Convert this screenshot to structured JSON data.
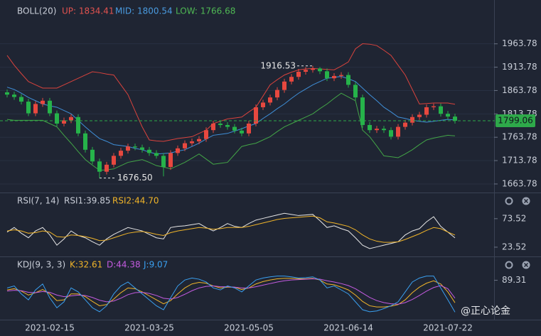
{
  "chart_data": [
    {
      "type": "candlestick",
      "header": [
        {
          "text": "BOLL(20)",
          "color": "#c9ced8"
        },
        {
          "text": "UP: 1834.41",
          "color": "#e0524f"
        },
        {
          "text": "MID: 1800.54",
          "color": "#4a9be0"
        },
        {
          "text": "LOW: 1766.68",
          "color": "#4fb854"
        }
      ],
      "categories": [
        null,
        null,
        null,
        null,
        null,
        null,
        "2021-02-15",
        null,
        null,
        null,
        null,
        null,
        null,
        null,
        null,
        null,
        null,
        null,
        null,
        null,
        "2021-03-25",
        null,
        null,
        null,
        null,
        null,
        null,
        null,
        null,
        null,
        null,
        null,
        null,
        null,
        "2021-05-05",
        null,
        null,
        null,
        null,
        null,
        null,
        null,
        null,
        null,
        null,
        null,
        null,
        null,
        "2021-06-14",
        null,
        null,
        null,
        null,
        null,
        null,
        null,
        null,
        null,
        null,
        null,
        null,
        null,
        "2021-07-22",
        null
      ],
      "candles": {
        "open": [
          1860,
          1855,
          1850,
          1840,
          1815,
          1835,
          1842,
          1815,
          1793,
          1800,
          1807,
          1772,
          1737,
          1712,
          1690,
          1705,
          1724,
          1735,
          1744,
          1742,
          1737,
          1730,
          1724,
          1700,
          1730,
          1740,
          1751,
          1755,
          1760,
          1779,
          1793,
          1790,
          1786,
          1778,
          1772,
          1793,
          1828,
          1838,
          1849,
          1865,
          1883,
          1893,
          1904,
          1908,
          1911,
          1905,
          1890,
          1895,
          1897,
          1876,
          1849,
          1790,
          1779,
          1782,
          1779,
          1765,
          1786,
          1795,
          1807,
          1812,
          1828,
          1830,
          1814,
          1808
        ],
        "high": [
          1866,
          1861,
          1856,
          1846,
          1841,
          1848,
          1848,
          1821,
          1806,
          1813,
          1813,
          1778,
          1743,
          1718,
          1711,
          1730,
          1741,
          1750,
          1750,
          1748,
          1743,
          1736,
          1730,
          1736,
          1746,
          1757,
          1761,
          1766,
          1785,
          1799,
          1799,
          1796,
          1792,
          1784,
          1799,
          1834,
          1844,
          1855,
          1871,
          1889,
          1899,
          1910,
          1914,
          1916.53,
          1914,
          1911,
          1901,
          1903,
          1903,
          1882,
          1855,
          1796,
          1788,
          1788,
          1785,
          1792,
          1801,
          1813,
          1818,
          1834,
          1836,
          1836,
          1820,
          1814
        ],
        "low": [
          1849,
          1844,
          1834,
          1809,
          1809,
          1829,
          1809,
          1787,
          1787,
          1794,
          1766,
          1731,
          1706,
          1676.5,
          1684,
          1699,
          1718,
          1729,
          1736,
          1731,
          1724,
          1718,
          1680,
          1694,
          1724,
          1734,
          1745,
          1749,
          1754,
          1773,
          1784,
          1780,
          1772,
          1766,
          1766,
          1787,
          1822,
          1832,
          1843,
          1859,
          1877,
          1887,
          1898,
          1902,
          1899,
          1884,
          1884,
          1889,
          1870,
          1843,
          1784,
          1773,
          1773,
          1773,
          1759,
          1759,
          1780,
          1789,
          1801,
          1806,
          1822,
          1808,
          1802,
          1793
        ],
        "close": [
          1855,
          1850,
          1840,
          1815,
          1835,
          1842,
          1815,
          1793,
          1800,
          1807,
          1772,
          1737,
          1712,
          1690,
          1705,
          1724,
          1735,
          1744,
          1742,
          1737,
          1730,
          1724,
          1700,
          1730,
          1740,
          1751,
          1755,
          1760,
          1779,
          1793,
          1790,
          1786,
          1778,
          1772,
          1793,
          1828,
          1838,
          1849,
          1865,
          1883,
          1893,
          1904,
          1908,
          1911,
          1905,
          1890,
          1895,
          1897,
          1876,
          1849,
          1790,
          1779,
          1782,
          1779,
          1765,
          1786,
          1795,
          1807,
          1812,
          1828,
          1830,
          1814,
          1808,
          1799.06
        ]
      },
      "up_color": "#e8483f",
      "down_color": "#26b34a",
      "series": [
        {
          "color": "#d9433d",
          "values": [
            1939,
            1918,
            1900,
            1883,
            1876,
            1869,
            1869,
            1869,
            1876,
            1883,
            1890,
            1897,
            1904,
            1902,
            1899,
            1897,
            1876,
            1855,
            1820,
            1786,
            1758,
            1756,
            1755,
            1758,
            1761,
            1763,
            1765,
            1772,
            1779,
            1793,
            1798,
            1803,
            1805,
            1807,
            1818,
            1828,
            1852,
            1876,
            1887,
            1897,
            1903,
            1908,
            1910,
            1911,
            1910,
            1909,
            1908,
            1916,
            1925,
            1953,
            1964,
            1963,
            1960,
            1950,
            1939,
            1918,
            1897,
            1866,
            1835,
            1836,
            1837,
            1837,
            1837,
            1834.41
          ]
        },
        {
          "color": "#3f8fd8",
          "values": [
            1871,
            1866,
            1858,
            1849,
            1842,
            1835,
            1831,
            1828,
            1821,
            1814,
            1800,
            1786,
            1773,
            1761,
            1755,
            1748,
            1746,
            1744,
            1740,
            1737,
            1732,
            1728,
            1729,
            1730,
            1734,
            1737,
            1744,
            1751,
            1760,
            1768,
            1770,
            1772,
            1777,
            1782,
            1788,
            1793,
            1804,
            1814,
            1825,
            1835,
            1847,
            1858,
            1867,
            1876,
            1883,
            1890,
            1892,
            1894,
            1889,
            1883,
            1869,
            1855,
            1842,
            1828,
            1818,
            1807,
            1804,
            1800,
            1798,
            1796,
            1798,
            1800,
            1802,
            1800.54
          ]
        },
        {
          "color": "#43a547",
          "values": [
            1802,
            1800,
            1800,
            1800,
            1800,
            1800,
            1793,
            1786,
            1768,
            1751,
            1733,
            1716,
            1704,
            1693,
            1694,
            1696,
            1703,
            1710,
            1713,
            1716,
            1710,
            1703,
            1700,
            1696,
            1703,
            1710,
            1719,
            1728,
            1717,
            1706,
            1708,
            1710,
            1727,
            1744,
            1748,
            1751,
            1758,
            1765,
            1776,
            1786,
            1793,
            1800,
            1807,
            1814,
            1825,
            1835,
            1847,
            1858,
            1850,
            1842,
            1779,
            1765,
            1745,
            1724,
            1722,
            1720,
            1728,
            1737,
            1748,
            1758,
            1762,
            1765,
            1768,
            1766.68
          ]
        }
      ],
      "ylim": [
        1647,
        2015
      ],
      "yticks": [
        1663.78,
        1713.78,
        1763.78,
        1813.78,
        1863.78,
        1913.78,
        1963.78
      ],
      "grid": true,
      "last_price": {
        "value": 1799.06,
        "label": "1799.06",
        "color": "#2ea94a"
      },
      "high_label": "1916.53",
      "low_label": "1676.50"
    },
    {
      "type": "line",
      "header": [
        {
          "text": "RSI(7, 14)",
          "color": "#c9ced8"
        },
        {
          "text": "RSI1:39.85",
          "color": "#c9ced8"
        },
        {
          "text": "RSI2:44.70",
          "color": "#f0b429"
        }
      ],
      "series": [
        {
          "color": "#e6e6e6",
          "values": [
            50,
            58,
            48,
            40,
            52,
            58,
            45,
            27,
            38,
            52,
            44,
            40,
            33,
            27,
            38,
            46,
            52,
            58,
            55,
            52,
            46,
            40,
            38,
            58,
            60,
            61,
            63,
            65,
            58,
            52,
            58,
            65,
            60,
            58,
            65,
            71,
            74,
            77,
            80,
            83,
            81,
            79,
            80,
            81,
            70,
            58,
            61,
            56,
            52,
            40,
            27,
            21,
            24,
            27,
            30,
            33,
            45,
            52,
            56,
            68,
            77,
            60,
            50,
            39.85
          ]
        },
        {
          "color": "#f0b429",
          "values": [
            52,
            54,
            52,
            48,
            49,
            52,
            50,
            42,
            41,
            45,
            44,
            42,
            39,
            35,
            36,
            40,
            44,
            48,
            50,
            51,
            49,
            46,
            44,
            49,
            52,
            54,
            56,
            58,
            57,
            55,
            56,
            58,
            58,
            58,
            60,
            63,
            66,
            69,
            72,
            74,
            75,
            76,
            77,
            78,
            75,
            68,
            66,
            63,
            60,
            54,
            45,
            38,
            34,
            32,
            32,
            33,
            37,
            42,
            47,
            53,
            58,
            56,
            50,
            44.7
          ]
        }
      ],
      "ylim": [
        11,
        92
      ],
      "yticks": [
        23.52,
        73.52
      ]
    },
    {
      "type": "line",
      "header": [
        {
          "text": "KDJ(9, 3, 3)",
          "color": "#c9ced8"
        },
        {
          "text": "K:32.61",
          "color": "#f0b429"
        },
        {
          "text": "D:44.38",
          "color": "#c45be0"
        },
        {
          "text": "J:9.07",
          "color": "#3aa0f0"
        }
      ],
      "series": [
        {
          "color": "#f0b429",
          "values": [
            65,
            68,
            62,
            52,
            58,
            66,
            55,
            38,
            40,
            55,
            55,
            48,
            36,
            25,
            28,
            42,
            58,
            70,
            68,
            60,
            50,
            40,
            30,
            38,
            55,
            70,
            80,
            84,
            82,
            75,
            70,
            72,
            72,
            66,
            70,
            80,
            86,
            90,
            93,
            94,
            94,
            93,
            93,
            94,
            90,
            80,
            78,
            72,
            65,
            52,
            36,
            25,
            22,
            22,
            24,
            28,
            40,
            58,
            72,
            82,
            88,
            80,
            60,
            32.61
          ]
        },
        {
          "color": "#c45be0",
          "values": [
            62,
            64,
            63,
            59,
            58,
            61,
            59,
            52,
            48,
            50,
            52,
            51,
            46,
            39,
            35,
            37,
            44,
            53,
            58,
            59,
            56,
            51,
            44,
            42,
            46,
            54,
            63,
            70,
            74,
            75,
            73,
            73,
            72,
            70,
            70,
            73,
            77,
            81,
            85,
            88,
            90,
            91,
            92,
            93,
            92,
            88,
            85,
            81,
            76,
            68,
            57,
            46,
            38,
            33,
            30,
            29,
            33,
            41,
            51,
            62,
            71,
            76,
            68,
            44.38
          ]
        },
        {
          "color": "#3aa0f0",
          "values": [
            70,
            75,
            55,
            40,
            65,
            80,
            45,
            20,
            35,
            70,
            60,
            40,
            20,
            10,
            25,
            55,
            75,
            85,
            70,
            55,
            40,
            25,
            15,
            45,
            75,
            90,
            95,
            92,
            85,
            70,
            65,
            75,
            70,
            60,
            75,
            90,
            95,
            98,
            100,
            100,
            98,
            95,
            96,
            98,
            90,
            70,
            75,
            65,
            55,
            35,
            15,
            10,
            12,
            18,
            25,
            35,
            60,
            85,
            95,
            100,
            100,
            70,
            40,
            9.07
          ]
        }
      ],
      "ylim": [
        -10,
        110
      ],
      "yticks": [
        89.31
      ]
    }
  ],
  "watermark": "@正心论金"
}
